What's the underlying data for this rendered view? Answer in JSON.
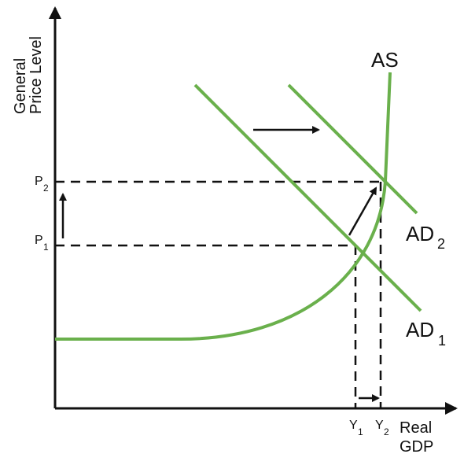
{
  "colors": {
    "curve": "#6ab04c",
    "axis": "#111111",
    "dashed": "#111111",
    "arrow": "#111111",
    "background": "#ffffff"
  },
  "axes": {
    "y_label_line1": "General",
    "y_label_line2": "Price Level",
    "x_label_line1": "Real",
    "x_label_line2": "GDP"
  },
  "curves": {
    "as_label": "AS",
    "ad1_label": "AD",
    "ad1_sub": "1",
    "ad2_label": "AD",
    "ad2_sub": "2"
  },
  "ticks": {
    "p1": "P",
    "p1_sub": "1",
    "p2": "P",
    "p2_sub": "2",
    "y1": "Y",
    "y1_sub": "1",
    "y2": "Y",
    "y2_sub": "2"
  }
}
